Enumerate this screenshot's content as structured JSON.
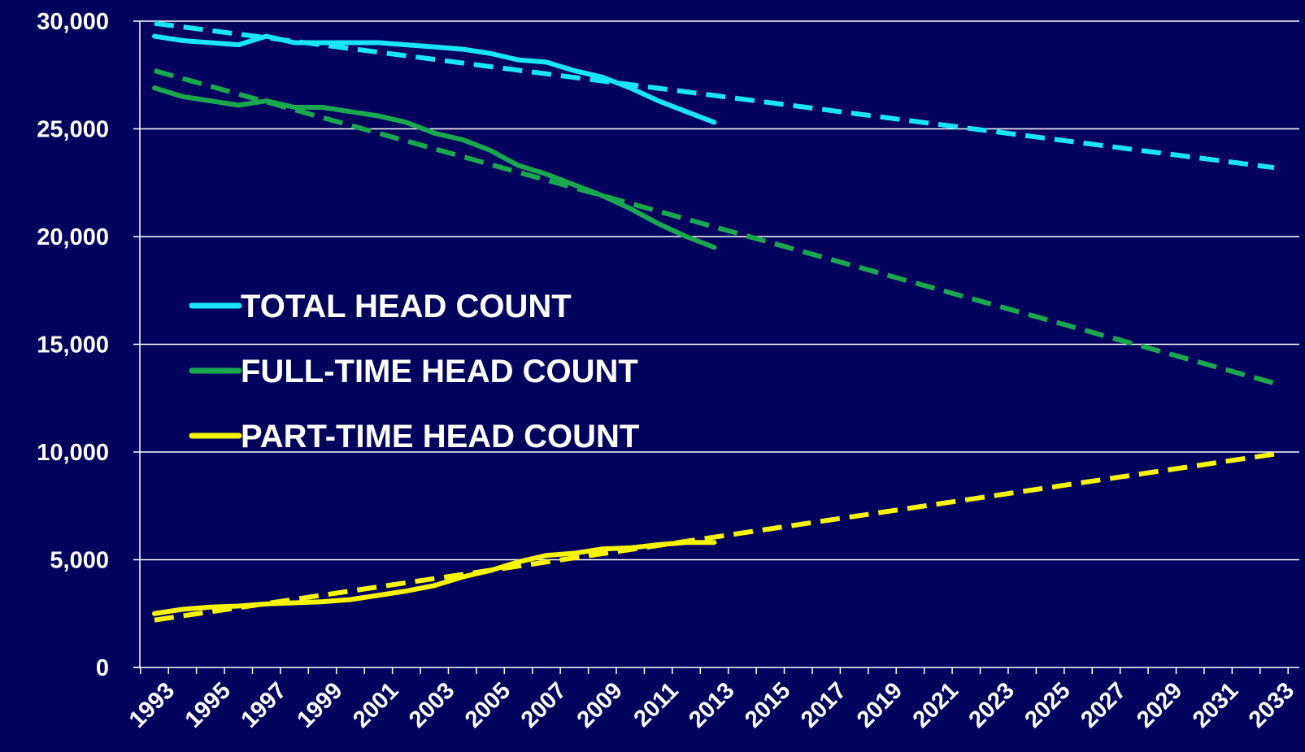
{
  "chart_data": {
    "type": "line",
    "title": "",
    "xlabel": "",
    "ylabel": "",
    "xlim": [
      1993,
      2033
    ],
    "ylim": [
      0,
      30000
    ],
    "y_ticks": [
      0,
      5000,
      10000,
      15000,
      20000,
      25000,
      30000
    ],
    "y_tick_labels": [
      "0",
      "5,000",
      "10,000",
      "15,000",
      "20,000",
      "25,000",
      "30,000"
    ],
    "x_ticks": [
      1993,
      1995,
      1997,
      1999,
      2001,
      2003,
      2005,
      2007,
      2009,
      2011,
      2013,
      2015,
      2017,
      2019,
      2021,
      2023,
      2025,
      2027,
      2029,
      2031,
      2033
    ],
    "x_tick_labels": [
      "1993",
      "1995",
      "1997",
      "1999",
      "2001",
      "2003",
      "2005",
      "2007",
      "2009",
      "2011",
      "2013",
      "2015",
      "2017",
      "2019",
      "2021",
      "2023",
      "2025",
      "2027",
      "2029",
      "2031",
      "2033"
    ],
    "grid": true,
    "legend_position": "left-middle",
    "background": "#03035e",
    "series": [
      {
        "name": "TOTAL HEAD COUNT",
        "color": "#19e6f5",
        "x": [
          1993,
          1994,
          1995,
          1996,
          1997,
          1998,
          1999,
          2000,
          2001,
          2002,
          2003,
          2004,
          2005,
          2006,
          2007,
          2008,
          2009,
          2010,
          2011,
          2012,
          2013
        ],
        "values": [
          29300,
          29100,
          29000,
          28900,
          29300,
          29000,
          29000,
          29000,
          29000,
          28900,
          28800,
          28700,
          28500,
          28200,
          28100,
          27700,
          27400,
          26900,
          26300,
          25800,
          25300
        ]
      },
      {
        "name": "FULL-TIME HEAD COUNT",
        "color": "#1aa84e",
        "x": [
          1993,
          1994,
          1995,
          1996,
          1997,
          1998,
          1999,
          2000,
          2001,
          2002,
          2003,
          2004,
          2005,
          2006,
          2007,
          2008,
          2009,
          2010,
          2011,
          2012,
          2013
        ],
        "values": [
          26900,
          26500,
          26300,
          26100,
          26300,
          26000,
          26000,
          25800,
          25600,
          25300,
          24800,
          24500,
          24000,
          23300,
          22900,
          22400,
          21900,
          21300,
          20600,
          20000,
          19500
        ]
      },
      {
        "name": "PART-TIME HEAD COUNT",
        "color": "#f5f500",
        "x": [
          1993,
          1994,
          1995,
          1996,
          1997,
          1998,
          1999,
          2000,
          2001,
          2002,
          2003,
          2004,
          2005,
          2006,
          2007,
          2008,
          2009,
          2010,
          2011,
          2012,
          2013
        ],
        "values": [
          2500,
          2700,
          2800,
          2850,
          2950,
          3000,
          3050,
          3150,
          3350,
          3550,
          3800,
          4200,
          4500,
          4900,
          5200,
          5300,
          5500,
          5550,
          5700,
          5800,
          5800
        ]
      }
    ],
    "trendlines": [
      {
        "series": "TOTAL HEAD COUNT",
        "color": "#19e6f5",
        "x": [
          1993,
          2033
        ],
        "values": [
          29900,
          23200
        ]
      },
      {
        "series": "FULL-TIME HEAD COUNT",
        "color": "#1aa84e",
        "x": [
          1993,
          2033
        ],
        "values": [
          27700,
          13200
        ]
      },
      {
        "series": "PART-TIME HEAD COUNT",
        "color": "#f5f500",
        "x": [
          1993,
          2033
        ],
        "values": [
          2200,
          9900
        ]
      }
    ]
  }
}
